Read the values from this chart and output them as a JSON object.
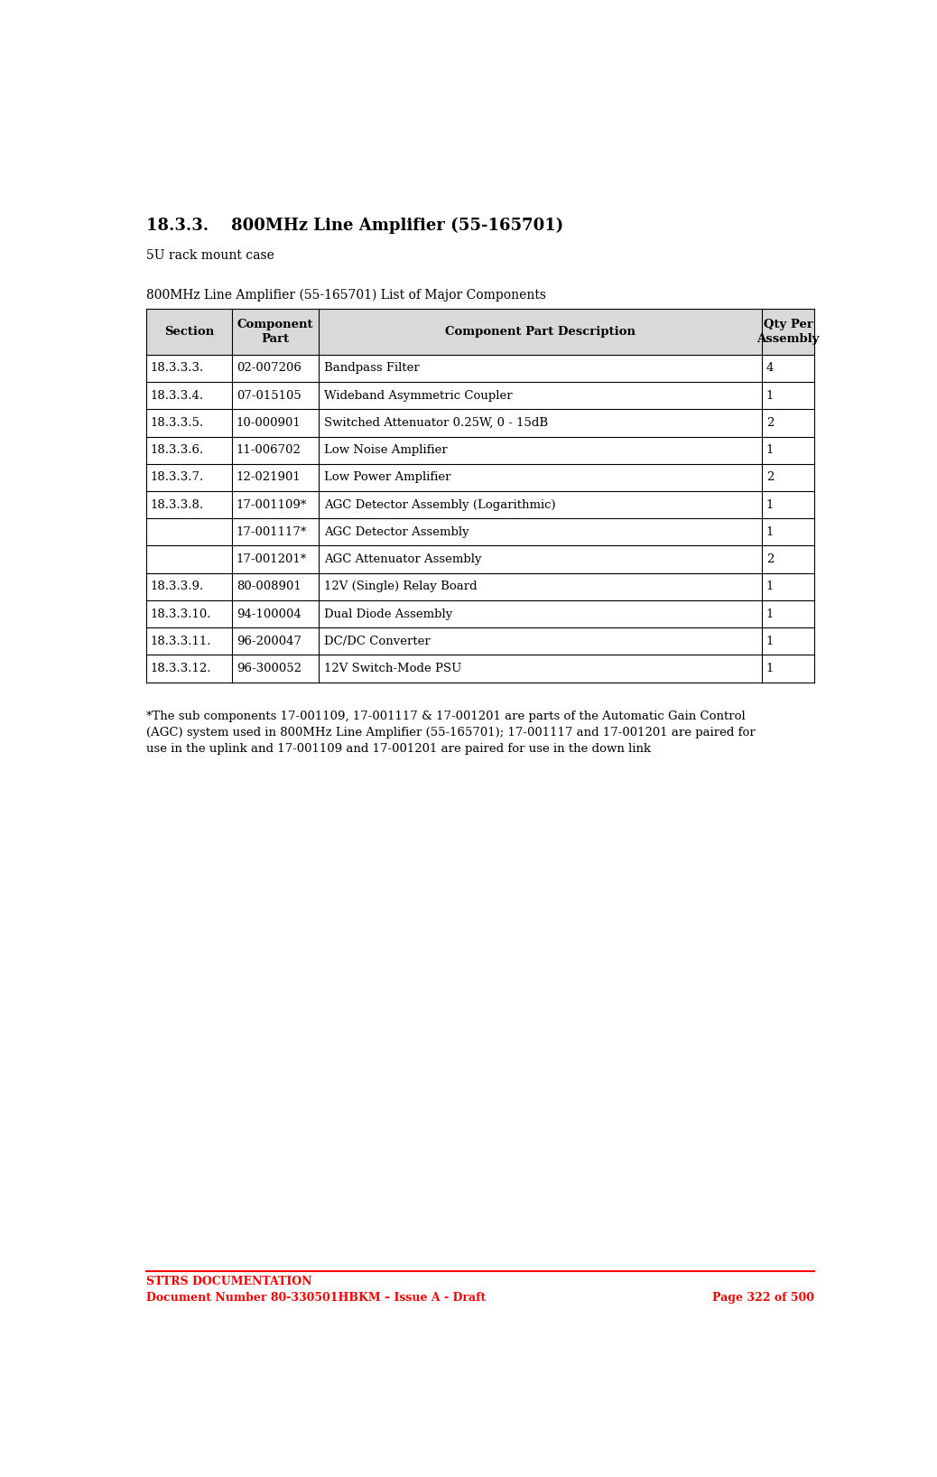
{
  "page_title": "18.3.3.    800MHz Line Amplifier (55-165701)",
  "subtitle": "5U rack mount case",
  "table_title": "800MHz Line Amplifier (55-165701) List of Major Components",
  "header": [
    "Section",
    "Component\nPart",
    "Component Part Description",
    "Qty Per\nAssembly"
  ],
  "rows": [
    [
      "18.3.3.3.",
      "02-007206",
      "Bandpass Filter",
      "4"
    ],
    [
      "18.3.3.4.",
      "07-015105",
      "Wideband Asymmetric Coupler",
      "1"
    ],
    [
      "18.3.3.5.",
      "10-000901",
      "Switched Attenuator 0.25W, 0 - 15dB",
      "2"
    ],
    [
      "18.3.3.6.",
      "11-006702",
      "Low Noise Amplifier",
      "1"
    ],
    [
      "18.3.3.7.",
      "12-021901",
      "Low Power Amplifier",
      "2"
    ],
    [
      "18.3.3.8.",
      "17-001109*",
      "AGC Detector Assembly (Logarithmic)",
      "1"
    ],
    [
      "",
      "17-001117*",
      "AGC Detector Assembly",
      "1"
    ],
    [
      "",
      "17-001201*",
      "AGC Attenuator Assembly",
      "2"
    ],
    [
      "18.3.3.9.",
      "80-008901",
      "12V (Single) Relay Board",
      "1"
    ],
    [
      "18.3.3.10.",
      "94-100004",
      "Dual Diode Assembly",
      "1"
    ],
    [
      "18.3.3.11.",
      "96-200047",
      "DC/DC Converter",
      "1"
    ],
    [
      "18.3.3.12.",
      "96-300052",
      "12V Switch-Mode PSU",
      "1"
    ]
  ],
  "footnote": "*The sub components 17-001109, 17-001117 & 17-001201 are parts of the Automatic Gain Control\n(AGC) system used in 800MHz Line Amplifier (55-165701); 17-001117 and 17-001201 are paired for\nuse in the uplink and 17-001109 and 17-001201 are paired for use in the down link",
  "footer_left1": "STTRS DOCUMENTATION",
  "footer_left2": "Document Number 80-330501HBKM – Issue A - Draft",
  "footer_right": "Page 322 of 500",
  "header_bg": "#d9d9d9",
  "border_color": "#000000",
  "text_color": "#000000",
  "red_color": "#ff0000",
  "title_fontsize": 13,
  "subtitle_fontsize": 10,
  "table_title_fontsize": 10,
  "header_fontsize": 9.5,
  "cell_fontsize": 9.5,
  "footnote_fontsize": 9.5,
  "footer_fontsize": 9
}
